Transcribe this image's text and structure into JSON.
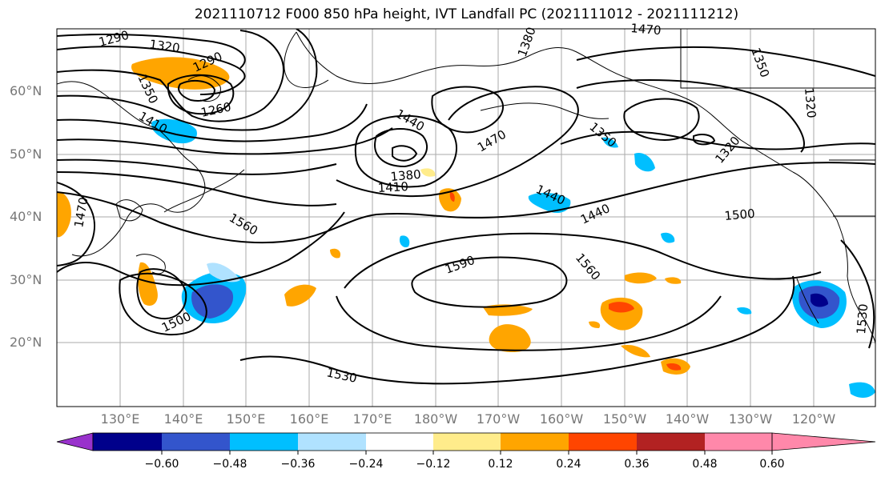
{
  "title": "2021110712 F000 850 hPa height, IVT Landfall PC (2021111012 - 2021111212)",
  "lat_labels": [
    "60°N",
    "50°N",
    "40°N",
    "30°N",
    "20°N"
  ],
  "lon_labels": [
    "130°E",
    "140°E",
    "150°E",
    "160°E",
    "170°E",
    "180°W",
    "170°W",
    "160°W",
    "150°W",
    "140°W",
    "130°W",
    "120°W"
  ],
  "contour_labels": [
    "1290",
    "1320",
    "1290",
    "1350",
    "1260",
    "1410",
    "1440",
    "1380",
    "1410",
    "1380",
    "1470",
    "1440",
    "1350",
    "1350",
    "1320",
    "1320",
    "1470",
    "1560",
    "1500",
    "1590",
    "1560",
    "1440",
    "1470",
    "1500",
    "1530",
    "1530"
  ],
  "colorbar": {
    "ticks": [
      "−0.60",
      "−0.48",
      "−0.36",
      "−0.24",
      "−0.12",
      "0.12",
      "0.24",
      "0.36",
      "0.48",
      "0.60"
    ],
    "colors": [
      "#9932cc",
      "#00008b",
      "#3355cc",
      "#00bfff",
      "#b0e2ff",
      "#ffffff",
      "#ffec8b",
      "#ffa500",
      "#ff4500",
      "#b22222",
      "#ff88aa"
    ]
  }
}
